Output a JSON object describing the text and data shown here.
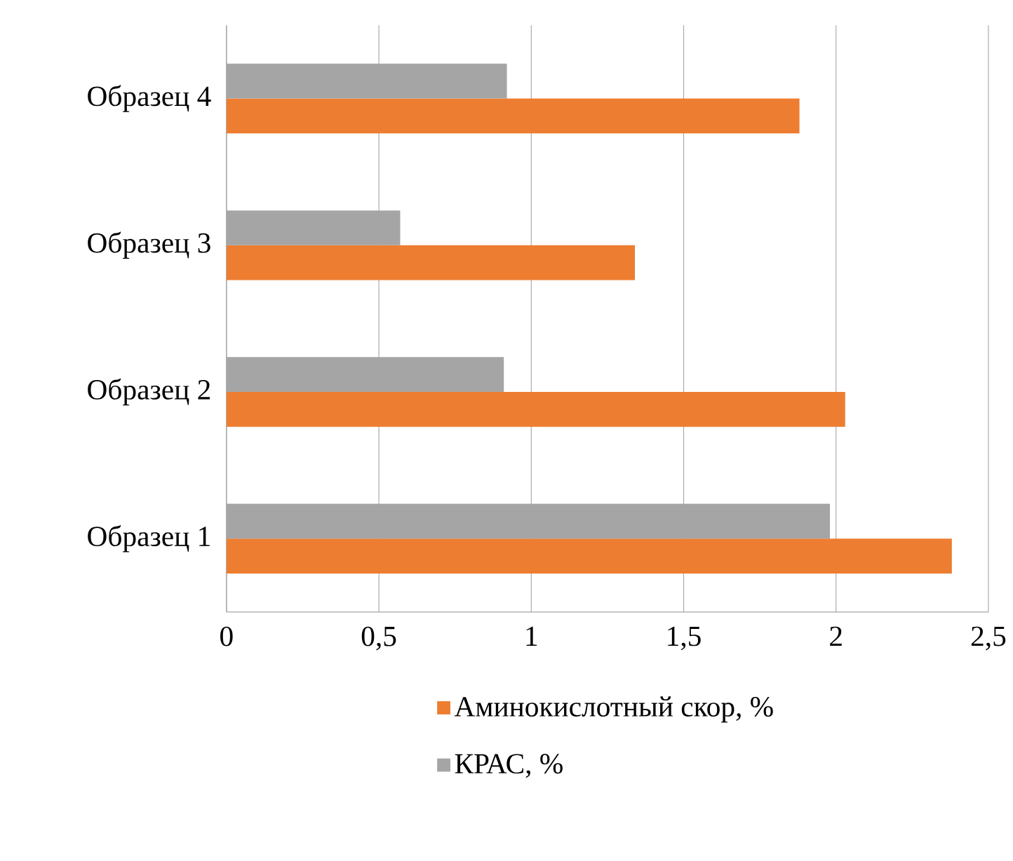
{
  "chart_data": {
    "type": "bar",
    "orientation": "horizontal",
    "categories": [
      "Образец 4",
      "Образец 3",
      "Образец 2",
      "Образец 1"
    ],
    "series": [
      {
        "name": "Аминокислотный скор, %",
        "color": "#ed7d31",
        "values": [
          1.88,
          1.34,
          2.03,
          2.38
        ]
      },
      {
        "name": "КРАС, %",
        "color": "#a5a5a5",
        "values": [
          0.92,
          0.57,
          0.91,
          1.98
        ]
      }
    ],
    "xlim": [
      0,
      2.5
    ],
    "xticks": [
      0,
      {
        "value": 0.5,
        "label": "0,5"
      },
      1,
      {
        "value": 1.5,
        "label": "1,5"
      },
      2,
      {
        "value": 2.5,
        "label": "2,5"
      }
    ],
    "grid": "x",
    "legend": "bottom"
  }
}
